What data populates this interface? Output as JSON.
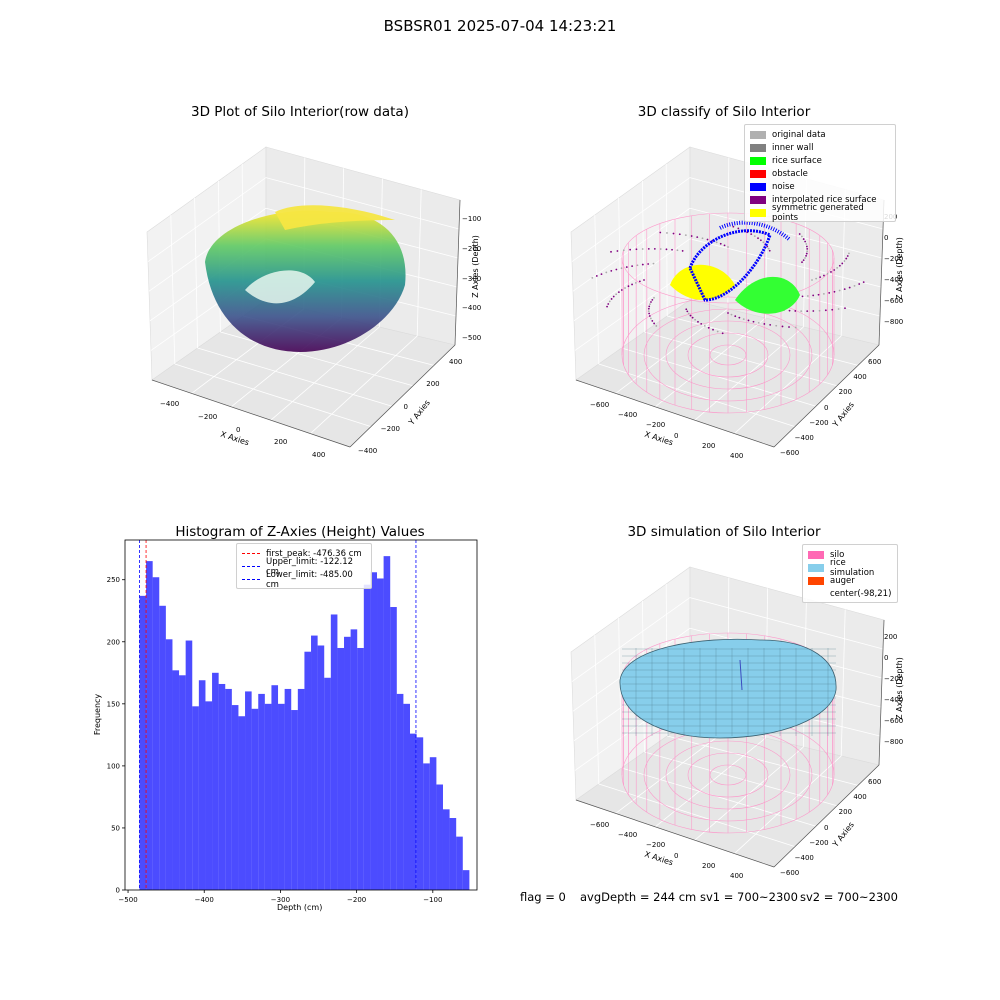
{
  "figure": {
    "suptitle": "BSBSR01 2025-07-04 14:23:21",
    "footer": {
      "flag": "flag = 0",
      "avg_depth": "avgDepth = 244 cm",
      "sv1": "sv1 = 700~2300",
      "sv2": "sv2 = 700~2300"
    }
  },
  "panels": {
    "raw": {
      "title": "3D Plot of Silo Interior(row data)",
      "xlabel": "X Axies",
      "ylabel": "Y Axies",
      "zlabel": "Z Axies (Depth)",
      "xticks": [
        "−400",
        "−200",
        "0",
        "200",
        "400"
      ],
      "yticks": [
        "−400",
        "−200",
        "0",
        "200",
        "400"
      ],
      "zticks": [
        "−100",
        "−200",
        "−300",
        "−400",
        "−500"
      ]
    },
    "classify": {
      "title": "3D classify of Silo Interior",
      "xlabel": "X Axies",
      "ylabel": "Y Axies",
      "zlabel": "Z Axies (Depth)",
      "xticks": [
        "−600",
        "−400",
        "−200",
        "0",
        "200",
        "400"
      ],
      "yticks": [
        "−600",
        "−400",
        "−200",
        "0",
        "200",
        "400",
        "600"
      ],
      "zticks": [
        "200",
        "0",
        "−200",
        "−400",
        "−600",
        "−800"
      ],
      "legend": [
        {
          "label": "original data",
          "color": "#b0b0b0"
        },
        {
          "label": "inner wall",
          "color": "#808080"
        },
        {
          "label": "rice surface",
          "color": "#00ff00"
        },
        {
          "label": "obstacle",
          "color": "#ff0000"
        },
        {
          "label": "noise",
          "color": "#0000ff"
        },
        {
          "label": "interpolated rice surface",
          "color": "#800080"
        },
        {
          "label": "symmetric generated points",
          "color": "#ffff00"
        }
      ]
    },
    "simulation": {
      "title": "3D simulation of Silo Interior",
      "xlabel": "X Axies",
      "ylabel": "Y Axies",
      "zlabel": "Z Axies (Depth)",
      "xticks": [
        "−600",
        "−400",
        "−200",
        "0",
        "200",
        "400"
      ],
      "yticks": [
        "−600",
        "−400",
        "−200",
        "0",
        "200",
        "400",
        "600"
      ],
      "zticks": [
        "200",
        "0",
        "−200",
        "−400",
        "−600",
        "−800"
      ],
      "legend": [
        {
          "label": "silo",
          "color": "#ff69b4"
        },
        {
          "label": "rice simulation",
          "color": "#87ceeb"
        },
        {
          "label": "auger",
          "color": "#ff4500"
        },
        {
          "label": "center(-98,21)",
          "color": ""
        }
      ]
    }
  },
  "chart_data": [
    {
      "type": "bar",
      "title": "Histogram of Z-Axies (Height) Values",
      "xlabel": "Depth (cm)",
      "ylabel": "Frequency",
      "bar_color": "#0000ff",
      "bar_alpha": 0.7,
      "xlim": [
        -504,
        -42
      ],
      "ylim": [
        0,
        282
      ],
      "xticks": [
        -500,
        -400,
        -300,
        -200,
        -100
      ],
      "xtick_labels": [
        "−500",
        "−400",
        "−300",
        "−200",
        "−100"
      ],
      "yticks": [
        0,
        50,
        100,
        150,
        200,
        250
      ],
      "bin_start": -485,
      "bin_width": 8.66,
      "values": [
        237,
        265,
        252,
        229,
        202,
        177,
        173,
        201,
        148,
        169,
        152,
        175,
        166,
        162,
        149,
        140,
        160,
        146,
        158,
        150,
        165,
        150,
        162,
        145,
        162,
        192,
        205,
        197,
        171,
        222,
        195,
        204,
        210,
        195,
        246,
        256,
        251,
        269,
        228,
        158,
        150,
        126,
        123,
        102,
        107,
        85,
        65,
        58,
        43,
        16
      ],
      "vlines": [
        {
          "label": "first_peak: -476.36 cm",
          "x": -476.36,
          "color": "#ff0000"
        },
        {
          "label": "Upper_limit: -122.12 cm",
          "x": -122.12,
          "color": "#0000ff"
        },
        {
          "label": "Lower_limit: -485.00 cm",
          "x": -485.0,
          "color": "#0000ff"
        }
      ]
    }
  ]
}
